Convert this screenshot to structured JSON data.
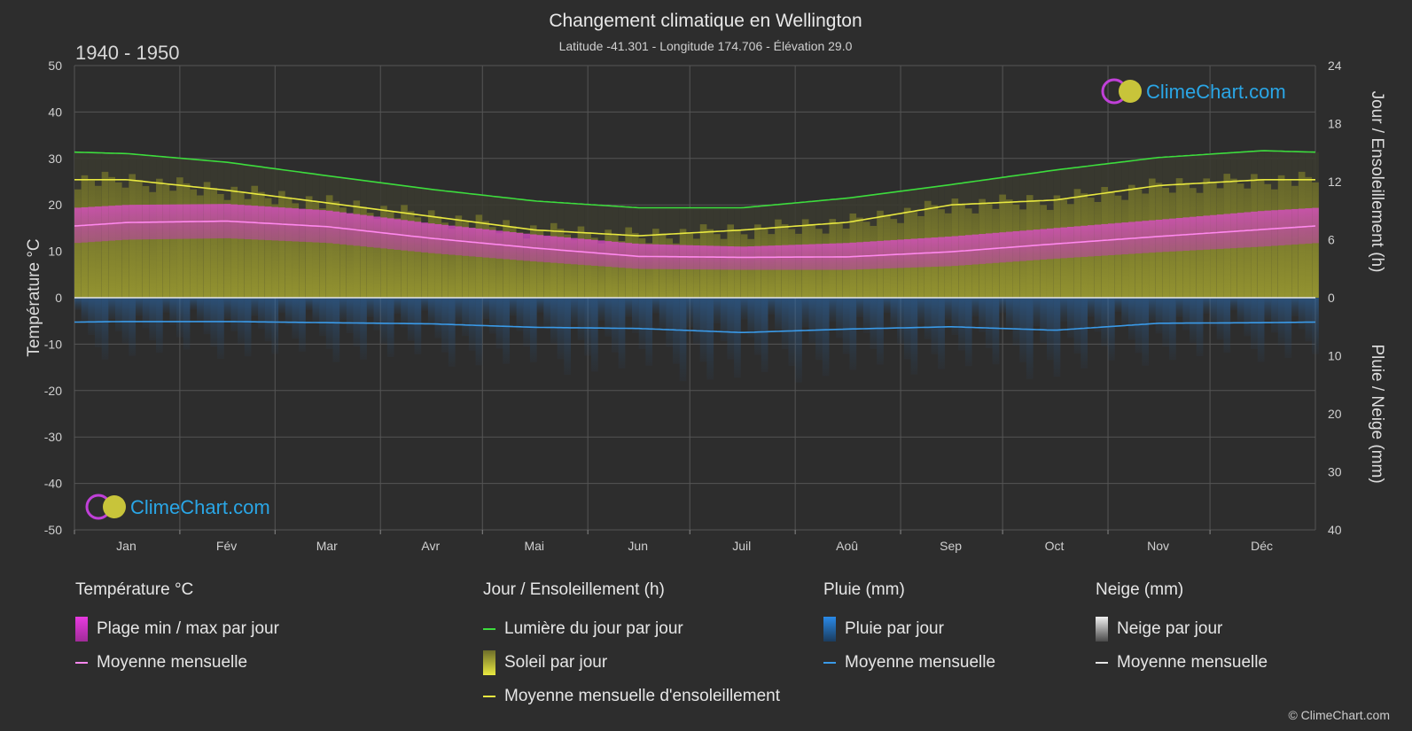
{
  "header": {
    "title": "Changement climatique en Wellington",
    "subtitle": "Latitude -41.301 - Longitude 174.706 - Élévation 29.0",
    "period": "1940 - 1950"
  },
  "logo": {
    "text": "ClimeChart.com"
  },
  "copyright": "© ClimeChart.com",
  "colors": {
    "background": "#2d2d2d",
    "daylight": "#3ddc3d",
    "sunshine_mean": "#e8e840",
    "sunshine_fill": "#9c9c2e",
    "temp_range": "#d948c6",
    "temp_mean": "#ff88ee",
    "rain": "#2a7fd4",
    "rain_mean": "#3a9ae8",
    "snow": "#cccccc"
  },
  "legend": {
    "temp": {
      "title": "Température °C",
      "range": "Plage min / max par jour",
      "mean": "Moyenne mensuelle"
    },
    "sun": {
      "title": "Jour / Ensoleillement (h)",
      "daylight": "Lumière du jour par jour",
      "sunshine": "Soleil par jour",
      "mean": "Moyenne mensuelle d'ensoleillement"
    },
    "rain": {
      "title": "Pluie (mm)",
      "daily": "Pluie par jour",
      "mean": "Moyenne mensuelle"
    },
    "snow": {
      "title": "Neige (mm)",
      "daily": "Neige par jour",
      "mean": "Moyenne mensuelle"
    }
  },
  "chart_data": {
    "type": "line",
    "categories": [
      "Jan",
      "Fév",
      "Mar",
      "Avr",
      "Mai",
      "Jun",
      "Juil",
      "Aoû",
      "Sep",
      "Oct",
      "Nov",
      "Déc"
    ],
    "y_left": {
      "label": "Température °C",
      "range": [
        -50,
        50
      ],
      "ticks": [
        50,
        40,
        30,
        20,
        10,
        0,
        -10,
        -20,
        -30,
        -40,
        -50
      ]
    },
    "y_right_top": {
      "label": "Jour / Ensoleillement (h)",
      "range": [
        0,
        24
      ],
      "ticks": [
        24,
        18,
        12,
        6,
        0
      ]
    },
    "y_right_bottom": {
      "label": "Pluie / Neige (mm)",
      "range": [
        0,
        40
      ],
      "ticks": [
        0,
        10,
        20,
        30,
        40
      ]
    },
    "grid": true,
    "series": [
      {
        "name": "Lumière du jour par jour",
        "unit": "h",
        "values": [
          14.9,
          14.0,
          12.6,
          11.2,
          10.0,
          9.3,
          9.3,
          10.3,
          11.7,
          13.2,
          14.5,
          15.2
        ]
      },
      {
        "name": "Moyenne mensuelle d'ensoleillement",
        "unit": "h",
        "values": [
          12.2,
          11.1,
          9.8,
          8.4,
          7.0,
          6.4,
          7.0,
          7.8,
          9.6,
          10.1,
          11.6,
          12.2
        ]
      },
      {
        "name": "Température moyenne mensuelle",
        "unit": "°C",
        "values": [
          16.2,
          16.5,
          15.3,
          12.8,
          10.7,
          8.9,
          8.7,
          8.8,
          9.9,
          11.6,
          13.2,
          14.7
        ]
      },
      {
        "name": "Température max quotidienne",
        "unit": "°C",
        "values": [
          20.0,
          20.2,
          18.8,
          16.0,
          13.6,
          11.6,
          11.0,
          11.8,
          13.2,
          15.0,
          16.8,
          18.7
        ]
      },
      {
        "name": "Température min quotidienne",
        "unit": "°C",
        "values": [
          12.5,
          12.8,
          11.8,
          9.6,
          7.8,
          6.2,
          6.0,
          6.0,
          6.8,
          8.4,
          9.8,
          11.0
        ]
      },
      {
        "name": "Pluie moyenne mensuelle",
        "unit": "mm",
        "values": [
          4.1,
          4.1,
          4.3,
          4.5,
          5.1,
          5.3,
          6.0,
          5.4,
          5.0,
          5.6,
          4.4,
          4.3
        ]
      },
      {
        "name": "Neige moyenne mensuelle",
        "unit": "mm",
        "values": [
          0,
          0,
          0,
          0,
          0,
          0,
          0,
          0,
          0,
          0,
          0,
          0
        ]
      }
    ]
  }
}
